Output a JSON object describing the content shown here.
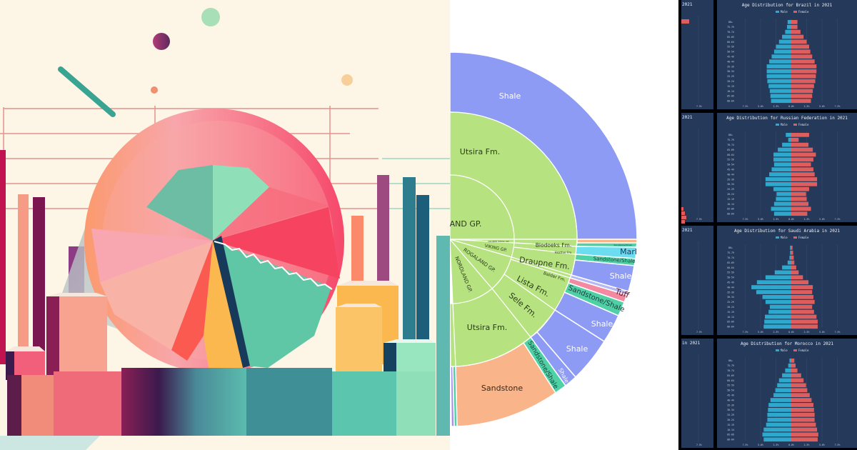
{
  "chart_data": [
    {
      "type": "illustration",
      "title": "",
      "description": "Decorative abstract illustration of a pie chart disc among 3D bar columns",
      "palette": [
        "#fdf5e6",
        "#f76a7a",
        "#f9a4a4",
        "#6cc6a6",
        "#fbb84e",
        "#1f4a6b",
        "#8a2a5c",
        "#3f8f96",
        "#9be3c0"
      ]
    },
    {
      "type": "sunburst",
      "title": "",
      "rings": [
        {
          "level": "group",
          "segments": [
            {
              "label": "NORDLAND GP.",
              "color": "#b6e37f"
            },
            {
              "label": "ROGALAND GP.",
              "color": "#b6e37f"
            },
            {
              "label": "VIKING GP.",
              "color": "#b6e37f"
            },
            {
              "label": "CROMER KNOLL GP.",
              "color": "#b6e37f"
            },
            {
              "label": "…AND GP.",
              "color": "#b6e37f"
            }
          ]
        },
        {
          "level": "formation",
          "segments": [
            {
              "label": "Utsira Fm.",
              "color": "#b6e37f"
            },
            {
              "label": "Blodoeks Fm.",
              "color": "#b6e37f"
            },
            {
              "label": "Heather Fm.",
              "color": "#b6e37f"
            },
            {
              "label": "Draupne Fm.",
              "color": "#b6e37f"
            },
            {
              "label": "Balder Fm.",
              "color": "#b6e37f"
            },
            {
              "label": "Lista Fm.",
              "color": "#b6e37f"
            },
            {
              "label": "Sele Fm.",
              "color": "#b6e37f"
            },
            {
              "label": "Utsira Fm.",
              "color": "#b6e37f"
            }
          ]
        },
        {
          "level": "lithology",
          "segments": [
            {
              "label": "Shale",
              "color": "#8e9bf4"
            },
            {
              "label": "Sandstone/Shale",
              "color": "#4fd1a5"
            },
            {
              "label": "Marl",
              "color": "#6cdcf0"
            },
            {
              "label": "Sandstone/Shale",
              "color": "#4fd1a5"
            },
            {
              "label": "Shale",
              "color": "#8e9bf4"
            },
            {
              "label": "Tuff",
              "color": "#f48aa1"
            },
            {
              "label": "Sandstone/Shale",
              "color": "#4fd1a5"
            },
            {
              "label": "Shale",
              "color": "#8e9bf4"
            },
            {
              "label": "Shale",
              "color": "#8e9bf4"
            },
            {
              "label": "Shale",
              "color": "#8e9bf4"
            },
            {
              "label": "Sandstone/Shale",
              "color": "#4fd1a5"
            },
            {
              "label": "Sandstone",
              "color": "#fab48a"
            }
          ]
        }
      ]
    },
    {
      "type": "bar",
      "orientation": "horizontal-pyramid",
      "title": "Age Distribution for Brazil in 2021",
      "legend": [
        "Male",
        "Female"
      ],
      "colors": {
        "Male": "#2ea8cc",
        "Female": "#de5e5e"
      },
      "categories": [
        "80+",
        "75-79",
        "70-74",
        "65-69",
        "60-64",
        "55-59",
        "50-54",
        "45-49",
        "40-44",
        "35-39",
        "30-34",
        "25-29",
        "20-24",
        "15-19",
        "10-14",
        "05-09",
        "00-04"
      ],
      "series": [
        {
          "name": "Male",
          "values": [
            0.6,
            0.7,
            1.0,
            1.5,
            2.0,
            2.5,
            2.8,
            3.2,
            3.6,
            4.0,
            4.0,
            4.0,
            3.9,
            3.7,
            3.5,
            3.4,
            3.3
          ]
        },
        {
          "name": "Female",
          "values": [
            1.0,
            1.0,
            1.5,
            2.0,
            2.5,
            2.9,
            3.1,
            3.4,
            3.8,
            4.1,
            4.1,
            4.0,
            3.9,
            3.7,
            3.5,
            3.4,
            3.2
          ]
        }
      ],
      "xticks": [
        "7.5%",
        "5.0%",
        "2.5%",
        "0.0%",
        "2.5%",
        "5.0%",
        "7.5%"
      ],
      "xlim": [
        -7.5,
        7.5
      ]
    },
    {
      "type": "bar",
      "orientation": "horizontal-pyramid",
      "title": "Age Distribution for Russian Federation in 2021",
      "legend": [
        "Male",
        "Female"
      ],
      "colors": {
        "Male": "#2ea8cc",
        "Female": "#de5e5e"
      },
      "categories": [
        "80+",
        "75-79",
        "70-74",
        "65-69",
        "60-64",
        "55-59",
        "50-54",
        "45-49",
        "40-44",
        "35-39",
        "30-34",
        "25-29",
        "20-24",
        "15-19",
        "10-14",
        "05-09",
        "00-04"
      ],
      "series": [
        {
          "name": "Male",
          "values": [
            0.9,
            0.5,
            1.5,
            2.2,
            2.9,
            2.9,
            2.8,
            3.2,
            3.6,
            4.2,
            4.2,
            2.9,
            2.4,
            2.5,
            2.8,
            3.3,
            2.8
          ]
        },
        {
          "name": "Female",
          "values": [
            2.9,
            1.2,
            2.8,
            3.5,
            4.0,
            3.6,
            3.2,
            3.6,
            3.8,
            4.2,
            4.2,
            2.9,
            2.4,
            2.5,
            2.8,
            3.2,
            2.6
          ]
        }
      ],
      "xticks": [
        "7.5%",
        "5.0%",
        "2.5%",
        "0.0%",
        "2.5%",
        "5.0%",
        "7.5%"
      ],
      "xlim": [
        -7.5,
        7.5
      ]
    },
    {
      "type": "bar",
      "orientation": "horizontal-pyramid",
      "title": "Age Distribution for Saudi Arabia in 2021",
      "legend": [
        "Male",
        "Female"
      ],
      "colors": {
        "Male": "#2ea8cc",
        "Female": "#de5e5e"
      },
      "categories": [
        "80+",
        "75-79",
        "70-74",
        "65-69",
        "60-64",
        "55-59",
        "50-54",
        "45-49",
        "40-44",
        "35-39",
        "30-34",
        "25-29",
        "20-24",
        "15-19",
        "10-14",
        "05-09",
        "00-04"
      ],
      "series": [
        {
          "name": "Male",
          "values": [
            0.2,
            0.2,
            0.3,
            0.6,
            1.5,
            2.7,
            4.2,
            5.6,
            6.5,
            5.7,
            4.7,
            4.2,
            3.5,
            3.7,
            4.3,
            4.4,
            4.5
          ]
        },
        {
          "name": "Female",
          "values": [
            0.2,
            0.3,
            0.4,
            0.5,
            0.8,
            1.2,
            1.9,
            2.8,
            3.5,
            3.4,
            3.6,
            3.8,
            3.4,
            3.7,
            4.1,
            4.3,
            4.3
          ]
        }
      ],
      "xticks": [
        "7.5%",
        "5.0%",
        "2.5%",
        "0.0%",
        "2.5%",
        "5.0%",
        "7.5%"
      ],
      "xlim": [
        -7.5,
        7.5
      ]
    },
    {
      "type": "bar",
      "orientation": "horizontal-pyramid",
      "title": "Age Distribution for Morocco in 2021",
      "legend": [
        "Male",
        "Female"
      ],
      "colors": {
        "Male": "#2ea8cc",
        "Female": "#de5e5e"
      },
      "categories": [
        "80+",
        "75-79",
        "70-74",
        "65-69",
        "60-64",
        "55-59",
        "50-54",
        "45-49",
        "40-44",
        "35-39",
        "30-34",
        "25-29",
        "20-24",
        "15-19",
        "10-14",
        "05-09",
        "00-04"
      ],
      "series": [
        {
          "name": "Male",
          "values": [
            0.3,
            0.5,
            1.0,
            1.5,
            2.0,
            2.3,
            2.6,
            2.9,
            3.4,
            3.7,
            3.8,
            3.9,
            3.9,
            4.1,
            4.5,
            4.7,
            4.5
          ]
        },
        {
          "name": "Female",
          "values": [
            0.5,
            0.7,
            1.0,
            1.6,
            2.0,
            2.4,
            2.6,
            3.0,
            3.3,
            3.6,
            3.7,
            3.8,
            3.8,
            4.0,
            4.2,
            4.4,
            4.3
          ]
        }
      ],
      "xticks": [
        "7.5%",
        "5.0%",
        "2.5%",
        "0.0%",
        "2.5%",
        "5.0%",
        "7.5%"
      ],
      "xlim": [
        -7.5,
        7.5
      ]
    }
  ],
  "sunburst": {
    "outer_top": "Shale",
    "ring2_top": "Utsira Fm.",
    "ring1_top": "AND GP.",
    "cromer": "CROMER KNOLL GP.",
    "viking": "VIKING GP.",
    "rogaland": "ROGALAND GP.",
    "nordland": "NORDLAND GP.",
    "blodoeks": "Blodoeks Fm.",
    "heather": "Heather Fm.",
    "draupne": "Draupne Fm.",
    "balder": "Balder Fm.",
    "lista": "Lista Fm.",
    "sele": "Sele Fm.",
    "utsira_bottom": "Utsira Fm.",
    "sandstone_shale_tiny": "Sandstone/Shale",
    "marl": "Marl",
    "sandstone_shale_1": "Sandstone/Shale",
    "shale_2": "Shale",
    "tuff": "Tuff",
    "sandstone_shale_2": "Sandstone/Shale",
    "shale_3": "Shale",
    "shale_4": "Shale",
    "shale_5": "Shale",
    "sandstone_shale_3": "Sandstone/Shale",
    "sandstone": "Sandstone"
  },
  "pyramids_left_clip": {
    "titles": [
      "2021",
      "2021",
      "2021",
      "in 2021"
    ]
  }
}
